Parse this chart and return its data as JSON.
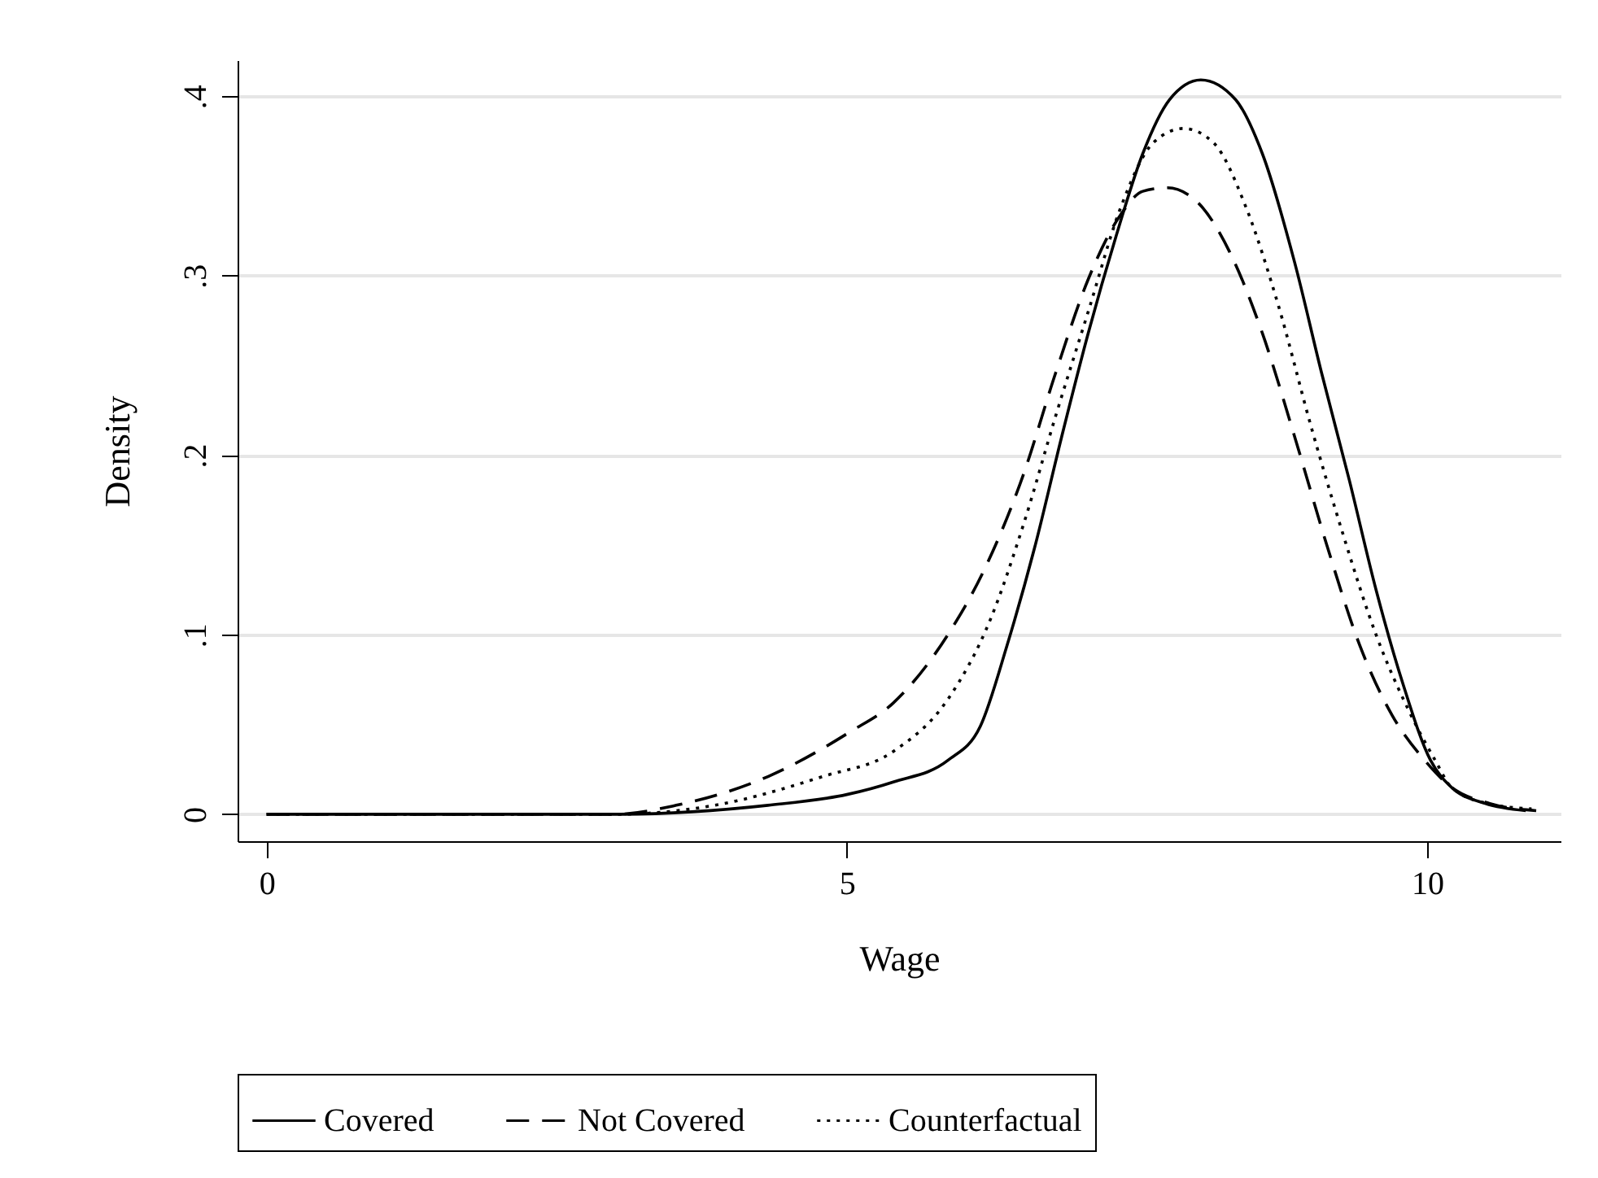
{
  "chart_data": {
    "type": "line",
    "xlabel": "Wage",
    "ylabel": "Density",
    "xlim": [
      -0.25,
      11.15
    ],
    "xticks": [
      0,
      5,
      10
    ],
    "ylim": [
      -0.015,
      0.42
    ],
    "yticks": [
      0,
      {
        "value": 0.1,
        "label": ".1"
      },
      {
        "value": 0.2,
        "label": ".2"
      },
      {
        "value": 0.3,
        "label": ".3"
      },
      {
        "value": 0.4,
        "label": ".4"
      }
    ],
    "grid": "y",
    "legend": "bottom",
    "marker": "none",
    "series": [
      {
        "name": "Covered",
        "color": "#000000",
        "line_style": "solid",
        "x": [
          0,
          2,
          3,
          4.32,
          5.0,
          5.4,
          5.87,
          6.15,
          6.38,
          6.62,
          6.85,
          7.08,
          7.32,
          7.55,
          7.78,
          8.05,
          8.35,
          8.58,
          8.86,
          9.09,
          9.33,
          9.56,
          9.79,
          10.03,
          10.21,
          10.5,
          10.85
        ],
        "values": [
          0,
          0,
          0,
          0.005,
          0.011,
          0.018,
          0.03,
          0.049,
          0.094,
          0.149,
          0.21,
          0.268,
          0.322,
          0.368,
          0.398,
          0.409,
          0.398,
          0.368,
          0.307,
          0.246,
          0.186,
          0.125,
          0.073,
          0.03,
          0.015,
          0.006,
          0.002
        ]
      },
      {
        "name": "Not Covered",
        "color": "#000000",
        "line_style": "dashed",
        "x": [
          0,
          2,
          3,
          3.53,
          4.32,
          5.03,
          5.4,
          5.87,
          6.19,
          6.52,
          6.8,
          7.08,
          7.36,
          7.55,
          7.76,
          8.02,
          8.3,
          8.58,
          8.86,
          9.14,
          9.42,
          9.7,
          9.98,
          10.21,
          10.54,
          10.94
        ],
        "values": [
          0,
          0,
          0,
          0.005,
          0.021,
          0.046,
          0.062,
          0.1,
          0.137,
          0.189,
          0.246,
          0.298,
          0.334,
          0.347,
          0.349,
          0.341,
          0.313,
          0.268,
          0.21,
          0.149,
          0.094,
          0.055,
          0.03,
          0.015,
          0.006,
          0.002
        ]
      },
      {
        "name": "Counterfactual",
        "color": "#000000",
        "line_style": "dotted",
        "x": [
          0,
          2,
          3,
          3.86,
          4.79,
          5.4,
          5.87,
          6.24,
          6.52,
          6.8,
          7.08,
          7.36,
          7.64,
          7.9,
          8.16,
          8.44,
          8.72,
          9.0,
          9.28,
          9.56,
          9.84,
          10.07,
          10.21,
          10.52,
          10.9
        ],
        "values": [
          0,
          0,
          0,
          0.005,
          0.021,
          0.035,
          0.064,
          0.109,
          0.161,
          0.222,
          0.28,
          0.338,
          0.374,
          0.382,
          0.374,
          0.338,
          0.283,
          0.216,
          0.155,
          0.1,
          0.058,
          0.03,
          0.015,
          0.006,
          0.003
        ]
      }
    ]
  }
}
